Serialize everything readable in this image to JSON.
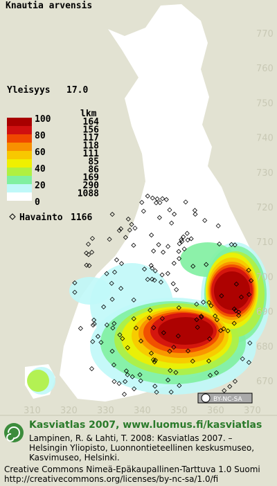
{
  "title": "Knautia arvensis",
  "frequency": {
    "label": "Yleisyys",
    "value": "17.0"
  },
  "legend": {
    "count_header": "lkm",
    "scale_labels": [
      "100",
      "80",
      "60",
      "40",
      "20",
      "0"
    ],
    "colors": [
      "#a80000",
      "#d01010",
      "#f04800",
      "#f89000",
      "#f8c800",
      "#f0f000",
      "#b0f040",
      "#80f0a0",
      "#c0f8f8",
      "#ffffff"
    ],
    "counts": [
      164,
      156,
      117,
      118,
      111,
      85,
      86,
      169,
      290,
      1088
    ]
  },
  "observations": {
    "label": "Havainto",
    "value": 1166
  },
  "grid": {
    "northing": [
      770,
      760,
      750,
      740,
      730,
      720,
      710,
      700,
      690,
      680,
      670
    ],
    "easting": [
      310,
      320,
      330,
      340,
      350,
      360,
      370
    ]
  },
  "license_badge": "BY-NC-SA",
  "footer": {
    "heading": "Kasviatlas 2007, www.luomus.fi/kasviatlas",
    "citation": [
      "Lampinen, R. & Lahti, T. 2008: Kasviatlas 2007. –",
      "Helsingin Yliopisto, Luonnontieteellinen keskusmuseo,",
      "Kasvimuseo, Helsinki."
    ],
    "license": [
      "Creative Commons Nimeä-Epäkaupallinen-Tarttuva 1.0 Suomi",
      "http://creativecommons.org/licenses/by-nc-sa/1.0/fi"
    ]
  }
}
